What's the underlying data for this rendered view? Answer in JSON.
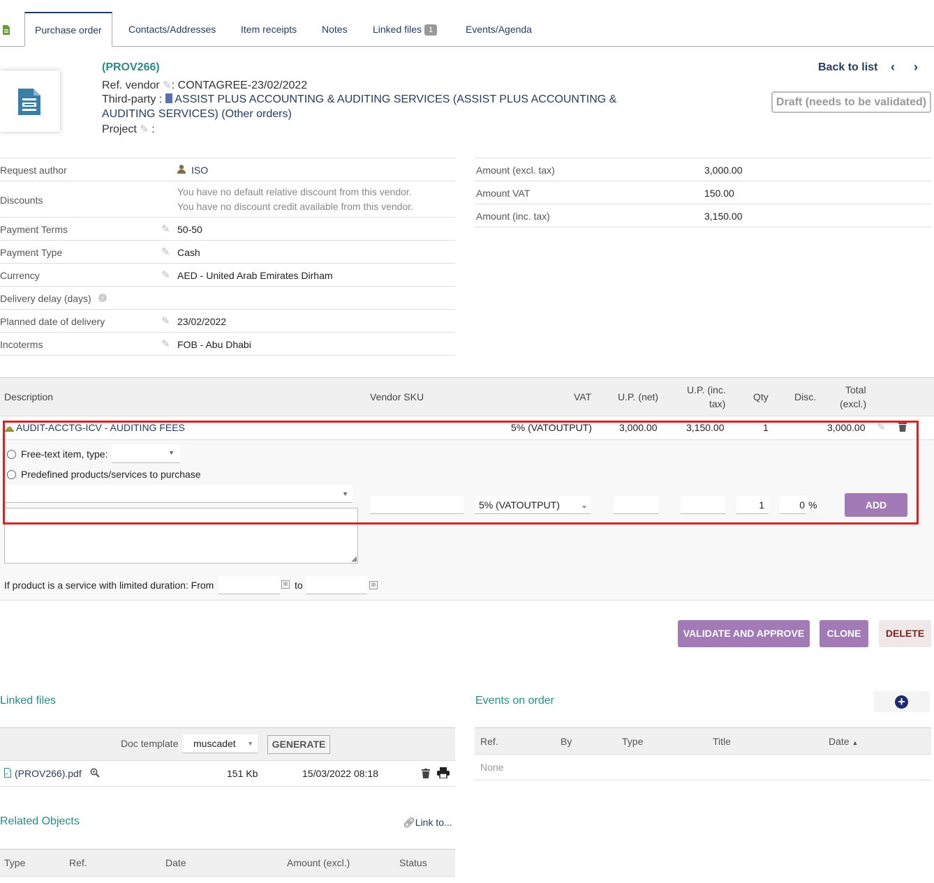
{
  "tabs": {
    "items": [
      {
        "label": "Purchase order"
      },
      {
        "label": "Contacts/Addresses"
      },
      {
        "label": "Item receipts"
      },
      {
        "label": "Notes"
      },
      {
        "label": "Linked files",
        "badge": "1"
      },
      {
        "label": "Events/Agenda"
      }
    ]
  },
  "header": {
    "ref": "(PROV266)",
    "ref_vendor_label": "Ref. vendor",
    "ref_vendor_value": ": CONTAGREE-23/02/2022",
    "third_party_label": "Third-party :",
    "third_party_value_1": "ASSIST PLUS ACCOUNTING & AUDITING SERVICES (ASSIST PLUS ACCOUNTING &",
    "third_party_value_2": "AUDITING SERVICES)",
    "other_orders": "(Other orders)",
    "project_label": "Project",
    "project_sep": ":",
    "back_to_list": "Back to list",
    "status": "Draft (needs to be validated)"
  },
  "fields": {
    "request_author": {
      "label": "Request author",
      "value": "ISO"
    },
    "discounts": {
      "label": "Discounts",
      "line1": "You have no default relative discount from this vendor.",
      "line2": "You have no discount credit available from this vendor."
    },
    "payment_terms": {
      "label": "Payment Terms",
      "value": "50-50"
    },
    "payment_type": {
      "label": "Payment Type",
      "value": "Cash"
    },
    "currency": {
      "label": "Currency",
      "value": "AED - United Arab Emirates Dirham"
    },
    "delivery_delay": {
      "label": "Delivery delay (days)"
    },
    "planned_date": {
      "label": "Planned date of delivery",
      "value": "23/02/2022"
    },
    "incoterms": {
      "label": "Incoterms",
      "value": "FOB - Abu Dhabi"
    }
  },
  "amounts": {
    "excl": {
      "label": "Amount (excl. tax)",
      "value": "3,000.00"
    },
    "vat": {
      "label": "Amount VAT",
      "value": "150.00"
    },
    "inc": {
      "label": "Amount (inc. tax)",
      "value": "3,150.00"
    }
  },
  "lines": {
    "headers": {
      "description": "Description",
      "vendor_sku": "Vendor SKU",
      "vat": "VAT",
      "up_net": "U.P. (net)",
      "up_inc_1": "U.P. (inc.",
      "up_inc_2": "tax)",
      "qty": "Qty",
      "disc": "Disc.",
      "total_1": "Total",
      "total_2": "(excl.)"
    },
    "rows": [
      {
        "description": "AUDIT-ACCTG-ICV - AUDITING FEES",
        "vat": "5% (VATOUTPUT)",
        "up_net": "3,000.00",
        "up_inc": "3,150.00",
        "qty": "1",
        "total": "3,000.00"
      }
    ]
  },
  "add_line": {
    "free_text_label": "Free-text item, type:",
    "predefined_label": "Predefined products/services to purchase",
    "vat_selected": "5% (VATOUTPUT)",
    "qty_value": "1",
    "disc_value": "0",
    "disc_unit": "%",
    "add_button": "ADD",
    "service_label": "If product is a service with limited duration: From",
    "to_label": "to"
  },
  "actions": {
    "validate": "VALIDATE AND APPROVE",
    "clone": "CLONE",
    "delete": "DELETE"
  },
  "linked_files": {
    "title": "Linked files",
    "doc_template_label": "Doc template",
    "template_value": "muscadet",
    "generate": "GENERATE",
    "files": [
      {
        "name": "(PROV266).pdf",
        "size": "151 Kb",
        "date": "15/03/2022 08:18"
      }
    ]
  },
  "events": {
    "title": "Events on order",
    "headers": {
      "ref": "Ref.",
      "by": "By",
      "type": "Type",
      "title": "Title",
      "date": "Date"
    },
    "empty": "None"
  },
  "related": {
    "title": "Related Objects",
    "link_to": "Link to...",
    "headers": {
      "type": "Type",
      "ref": "Ref.",
      "date": "Date",
      "amount": "Amount (excl.)",
      "status": "Status"
    }
  },
  "colors": {
    "accent": "#a27ab5",
    "link": "#263c5c",
    "teal": "#2a8a8a",
    "highlight": "#e02020"
  }
}
